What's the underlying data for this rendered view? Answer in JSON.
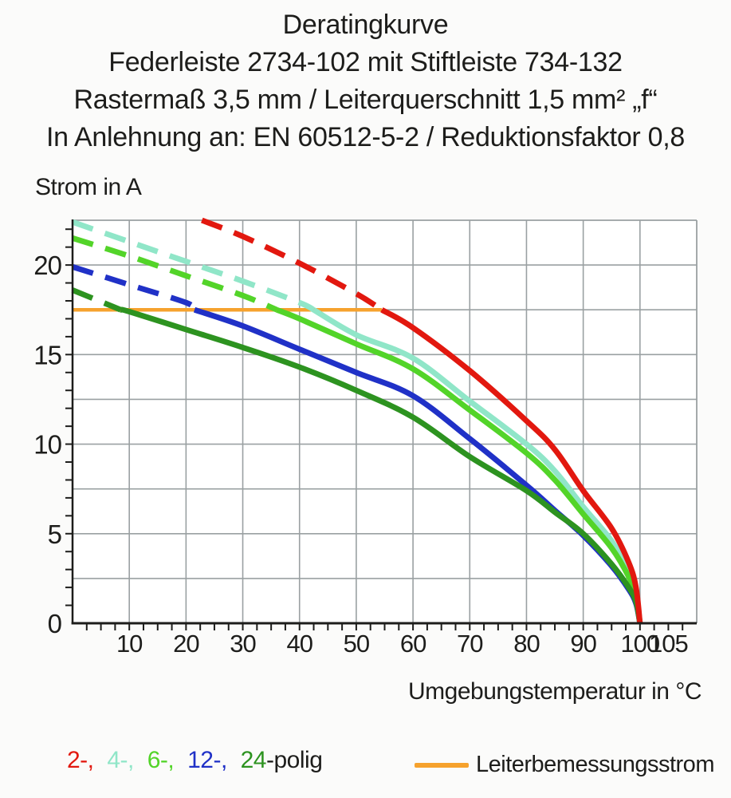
{
  "title": {
    "lines": [
      "Deratingkurve",
      "Federleiste 2734-102 mit Stiftleiste 734-132",
      "Rastermaß 3,5 mm / Leiterquerschnitt 1,5 mm² „f“",
      "In Anlehnung an: EN 60512-5-2 / Reduktionsfaktor 0,8"
    ]
  },
  "chart_data": {
    "type": "line",
    "title": "Deratingkurve",
    "xlabel": "Umgebungstemperatur in °C",
    "ylabel": "Strom in A",
    "xlim": [
      0,
      110
    ],
    "ylim": [
      0,
      22.5
    ],
    "grid": true,
    "x_grid_step": 10,
    "y_grid_step": 2.5,
    "x_minor_tick_step": 2.5,
    "y_minor_tick_step": 1,
    "x_tick_labels": [
      10,
      20,
      30,
      40,
      50,
      60,
      70,
      80,
      90,
      100,
      105
    ],
    "y_tick_labels": [
      0,
      5,
      10,
      15,
      20
    ],
    "grid_color": "#9aa0a2",
    "axis_color": "#1d1d1b",
    "rated_current_line": {
      "label": "Leiterbemessungsstrom",
      "value": 17.5,
      "x_start": 0,
      "x_end": 54.5,
      "color": "#f6a22d"
    },
    "dash_note": "curve segments above the rated current 17.5 A are dashed, below solid",
    "series": [
      {
        "name": "2-polig",
        "color": "#e2180f",
        "z": 5,
        "solid_from": 54.5,
        "points": [
          [
            22.8,
            22.5
          ],
          [
            30,
            21.6
          ],
          [
            40,
            20.1
          ],
          [
            50,
            18.4
          ],
          [
            54.5,
            17.5
          ],
          [
            60,
            16.5
          ],
          [
            70,
            14.1
          ],
          [
            80,
            11.3
          ],
          [
            85,
            9.7
          ],
          [
            90,
            7.4
          ],
          [
            95,
            5.3
          ],
          [
            98,
            3.4
          ],
          [
            99.3,
            2.0
          ],
          [
            100,
            0
          ]
        ]
      },
      {
        "name": "4-polig",
        "color": "#90e6c8",
        "z": 2,
        "solid_from": 42.5,
        "points": [
          [
            0,
            22.4
          ],
          [
            10,
            21.3
          ],
          [
            20,
            20.2
          ],
          [
            30,
            19.1
          ],
          [
            40,
            17.9
          ],
          [
            42.5,
            17.5
          ],
          [
            50,
            16.1
          ],
          [
            60,
            14.8
          ],
          [
            70,
            12.4
          ],
          [
            80,
            10.0
          ],
          [
            85,
            8.5
          ],
          [
            90,
            6.5
          ],
          [
            95,
            4.6
          ],
          [
            98,
            2.9
          ],
          [
            99.3,
            1.7
          ],
          [
            100,
            0
          ]
        ]
      },
      {
        "name": "6-polig",
        "color": "#53d429",
        "z": 3,
        "solid_from": 36,
        "points": [
          [
            0,
            21.5
          ],
          [
            10,
            20.5
          ],
          [
            20,
            19.4
          ],
          [
            30,
            18.3
          ],
          [
            36,
            17.5
          ],
          [
            40,
            17.0
          ],
          [
            50,
            15.6
          ],
          [
            60,
            14.2
          ],
          [
            70,
            11.9
          ],
          [
            80,
            9.5
          ],
          [
            85,
            8.0
          ],
          [
            90,
            6.1
          ],
          [
            95,
            4.2
          ],
          [
            98,
            2.6
          ],
          [
            99.3,
            1.5
          ],
          [
            100,
            0
          ]
        ]
      },
      {
        "name": "12-polig",
        "color": "#2031c7",
        "z": 1,
        "solid_from": 21.5,
        "points": [
          [
            0,
            19.9
          ],
          [
            10,
            18.9
          ],
          [
            20,
            17.9
          ],
          [
            21.5,
            17.5
          ],
          [
            30,
            16.6
          ],
          [
            40,
            15.3
          ],
          [
            50,
            14.0
          ],
          [
            60,
            12.7
          ],
          [
            70,
            10.3
          ],
          [
            80,
            7.7
          ],
          [
            85,
            6.3
          ],
          [
            90,
            4.9
          ],
          [
            95,
            3.2
          ],
          [
            98,
            1.9
          ],
          [
            99.3,
            1.1
          ],
          [
            100,
            0
          ]
        ]
      },
      {
        "name": "24-polig",
        "color": "#2d9320",
        "z": 4,
        "solid_from": 8.5,
        "points": [
          [
            0,
            18.6
          ],
          [
            8.5,
            17.5
          ],
          [
            10,
            17.4
          ],
          [
            20,
            16.4
          ],
          [
            30,
            15.4
          ],
          [
            40,
            14.3
          ],
          [
            50,
            13.0
          ],
          [
            60,
            11.5
          ],
          [
            70,
            9.3
          ],
          [
            80,
            7.4
          ],
          [
            85,
            6.2
          ],
          [
            90,
            5.0
          ],
          [
            95,
            3.3
          ],
          [
            98,
            2.0
          ],
          [
            99.3,
            1.2
          ],
          [
            100,
            0
          ]
        ]
      }
    ]
  },
  "legend": {
    "poles": [
      {
        "label": "2-,",
        "color": "#e2180f"
      },
      {
        "label": "4-,",
        "color": "#90e6c8"
      },
      {
        "label": "6-,",
        "color": "#53d429"
      },
      {
        "label": "12-,",
        "color": "#2031c7"
      },
      {
        "label": "24",
        "color": "#2d9320"
      },
      {
        "label": "-polig",
        "color": "#1d1d1b"
      }
    ],
    "rated": {
      "label": "Leiterbemessungsstrom",
      "swatch_color": "#f6a22d"
    }
  }
}
